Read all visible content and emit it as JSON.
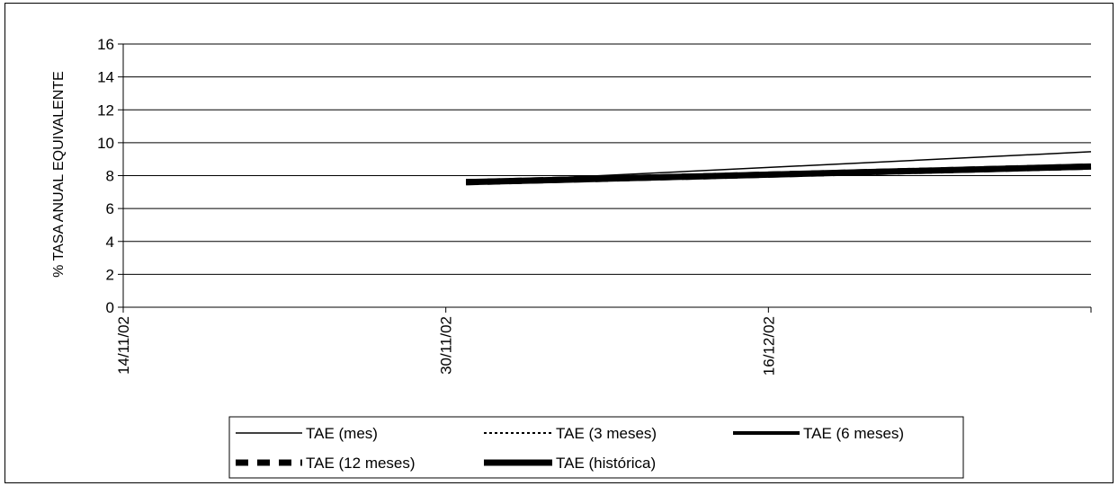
{
  "chart_data": {
    "type": "line",
    "title": "",
    "xlabel": "",
    "ylabel": "% TASA ANUAL EQUIVALENTE",
    "x_tick_labels": [
      "14/11/02",
      "30/11/02",
      "16/12/02"
    ],
    "x_range": [
      "14/11/02",
      "01/01/03"
    ],
    "y_ticks": [
      "0",
      "2",
      "4",
      "6",
      "8",
      "10",
      "12",
      "14",
      "16"
    ],
    "ylim": [
      0,
      16
    ],
    "grid": "horizontal",
    "legend_position": "bottom",
    "series": [
      {
        "name": "TAE (mes)",
        "style": "thin-solid",
        "points": [
          [
            "01/12/02",
            7.6
          ],
          [
            "01/01/03",
            9.45
          ]
        ]
      },
      {
        "name": "TAE (3 meses)",
        "style": "dotted",
        "points": [
          [
            "01/12/02",
            7.6
          ],
          [
            "01/01/03",
            8.55
          ]
        ]
      },
      {
        "name": "TAE (6 meses)",
        "style": "medium-solid",
        "points": [
          [
            "01/12/02",
            7.6
          ],
          [
            "01/01/03",
            8.55
          ]
        ]
      },
      {
        "name": "TAE (12 meses)",
        "style": "thick-dashed",
        "points": [
          [
            "01/12/02",
            7.6
          ],
          [
            "01/01/03",
            8.55
          ]
        ]
      },
      {
        "name": "TAE (histórica)",
        "style": "thick-solid",
        "points": [
          [
            "01/12/02",
            7.6
          ],
          [
            "01/01/03",
            8.55
          ]
        ]
      }
    ]
  }
}
